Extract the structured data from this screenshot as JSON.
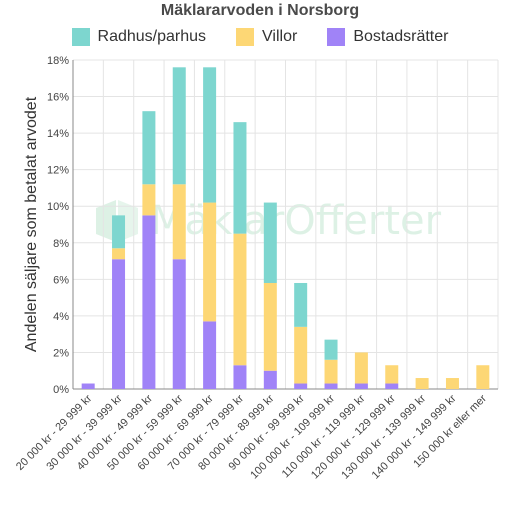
{
  "chart_data": {
    "type": "bar",
    "stacked": true,
    "title": "Mäklararvoden i Norsborg",
    "ylabel": "Andelen säljare som betalat arvodet",
    "xlabel": "",
    "ylim": [
      0,
      18
    ],
    "y_ticks": [
      "0%",
      "2%",
      "4%",
      "6%",
      "8%",
      "10%",
      "12%",
      "14%",
      "16%",
      "18%"
    ],
    "grid": true,
    "legend_position": "top",
    "categories": [
      "20 000 kr - 29 999 kr",
      "30 000 kr - 39 999 kr",
      "40 000 kr - 49 999 kr",
      "50 000 kr - 59 999 kr",
      "60 000 kr - 69 999 kr",
      "70 000 kr - 79 999 kr",
      "80 000 kr - 89 999 kr",
      "90 000 kr - 99 999 kr",
      "100 000 kr - 109 999 kr",
      "110 000 kr - 119 999 kr",
      "120 000 kr - 129 999 kr",
      "130 000 kr - 139 999 kr",
      "140 000 kr - 149 999 kr",
      "150 000 kr eller mer"
    ],
    "series": [
      {
        "name": "Bostadsrätter",
        "color": "#a083f7",
        "values": [
          0.3,
          7.1,
          9.5,
          7.1,
          3.7,
          1.3,
          1.0,
          0.3,
          0.3,
          0.3,
          0.3,
          0,
          0,
          0
        ]
      },
      {
        "name": "Villor",
        "color": "#fdd775",
        "values": [
          0,
          0.6,
          1.7,
          4.1,
          6.5,
          7.2,
          4.8,
          3.1,
          1.3,
          1.7,
          1.0,
          0.6,
          0.6,
          1.3
        ]
      },
      {
        "name": "Radhus/parhus",
        "color": "#7dd6cf",
        "values": [
          0,
          1.8,
          4.0,
          6.4,
          7.4,
          6.1,
          4.4,
          2.4,
          1.1,
          0,
          0,
          0,
          0,
          0
        ]
      }
    ],
    "legend_order": [
      "Radhus/parhus",
      "Villor",
      "Bostadsrätter"
    ]
  },
  "watermark": {
    "text": "MäklarOfferter"
  }
}
